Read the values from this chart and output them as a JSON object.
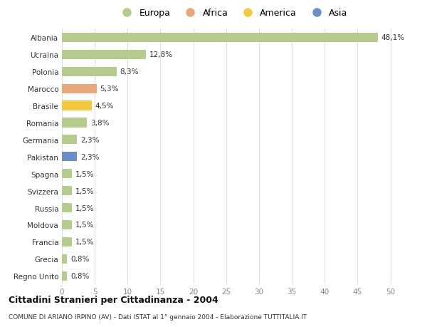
{
  "countries": [
    "Albania",
    "Ucraina",
    "Polonia",
    "Marocco",
    "Brasile",
    "Romania",
    "Germania",
    "Pakistan",
    "Spagna",
    "Svizzera",
    "Russia",
    "Moldova",
    "Francia",
    "Grecia",
    "Regno Unito"
  ],
  "values": [
    48.1,
    12.8,
    8.3,
    5.3,
    4.5,
    3.8,
    2.3,
    2.3,
    1.5,
    1.5,
    1.5,
    1.5,
    1.5,
    0.8,
    0.8
  ],
  "labels": [
    "48,1%",
    "12,8%",
    "8,3%",
    "5,3%",
    "4,5%",
    "3,8%",
    "2,3%",
    "2,3%",
    "1,5%",
    "1,5%",
    "1,5%",
    "1,5%",
    "1,5%",
    "0,8%",
    "0,8%"
  ],
  "colors": [
    "#b5cc8e",
    "#b5cc8e",
    "#b5cc8e",
    "#e8a87c",
    "#f5c842",
    "#b5cc8e",
    "#b5cc8e",
    "#6a8fc8",
    "#b5cc8e",
    "#b5cc8e",
    "#b5cc8e",
    "#b5cc8e",
    "#b5cc8e",
    "#b5cc8e",
    "#b5cc8e"
  ],
  "legend_labels": [
    "Europa",
    "Africa",
    "America",
    "Asia"
  ],
  "legend_colors": [
    "#b5cc8e",
    "#e8a87c",
    "#f5c842",
    "#6a8fc8"
  ],
  "xlim": [
    0,
    52
  ],
  "xticks": [
    0,
    5,
    10,
    15,
    20,
    25,
    30,
    35,
    40,
    45,
    50
  ],
  "title": "Cittadini Stranieri per Cittadinanza - 2004",
  "subtitle": "COMUNE DI ARIANO IRPINO (AV) - Dati ISTAT al 1° gennaio 2004 - Elaborazione TUTTITALIA.IT",
  "bg_color": "#ffffff",
  "grid_color": "#e0e0e0",
  "label_fontsize": 7.5,
  "bar_height": 0.55
}
